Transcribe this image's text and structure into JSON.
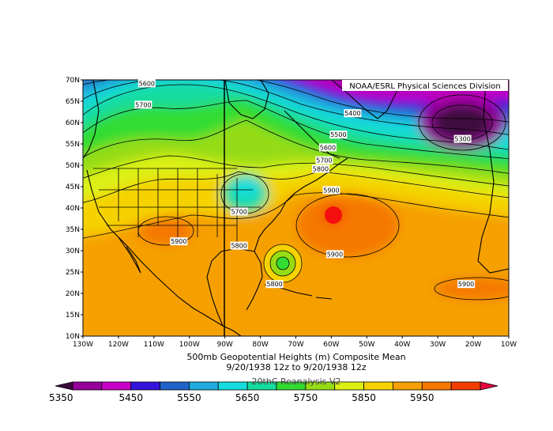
{
  "map": {
    "credit": "NOAA/ESRL Physical Sciences Division",
    "lat_labels": [
      "70N",
      "65N",
      "60N",
      "55N",
      "50N",
      "45N",
      "40N",
      "35N",
      "30N",
      "25N",
      "20N",
      "15N",
      "10N"
    ],
    "lon_labels": [
      "130W",
      "120W",
      "110W",
      "100W",
      "90W",
      "80W",
      "70W",
      "60W",
      "50W",
      "40W",
      "30W",
      "20W",
      "10W"
    ],
    "contour_labels": [
      {
        "text": "5600",
        "lon": -112,
        "lat": 69
      },
      {
        "text": "5700",
        "lon": -113,
        "lat": 64
      },
      {
        "text": "5400",
        "lon": -54,
        "lat": 62
      },
      {
        "text": "5500",
        "lon": -58,
        "lat": 57
      },
      {
        "text": "5300",
        "lon": -23,
        "lat": 56
      },
      {
        "text": "5600",
        "lon": -61,
        "lat": 54
      },
      {
        "text": "5700",
        "lon": -62,
        "lat": 51
      },
      {
        "text": "5800",
        "lon": -63,
        "lat": 49
      },
      {
        "text": "5900",
        "lon": -60,
        "lat": 44
      },
      {
        "text": "5700",
        "lon": -86,
        "lat": 39
      },
      {
        "text": "5900",
        "lon": -103,
        "lat": 32
      },
      {
        "text": "5800",
        "lon": -86,
        "lat": 31
      },
      {
        "text": "5900",
        "lon": -59,
        "lat": 29
      },
      {
        "text": "5800",
        "lon": -76,
        "lat": 22
      },
      {
        "text": "5900",
        "lon": -22,
        "lat": 22
      }
    ]
  },
  "caption": {
    "line1": "500mb Geopotential Heights (m)   Composite Mean",
    "line2": "9/20/1938 12z  to 9/20/1938 12z",
    "line3": "20thC Reanalysis V2"
  },
  "colorbar": {
    "colors": [
      "#3c0a3c",
      "#96009a",
      "#c800c8",
      "#3214dc",
      "#1e64c8",
      "#1eaadc",
      "#14dcdc",
      "#14dca0",
      "#32dc32",
      "#96dc14",
      "#dcf014",
      "#f5d200",
      "#f5a000",
      "#f57800",
      "#f53c00",
      "#e6003c"
    ],
    "labels": [
      "5350",
      "5450",
      "5550",
      "5650",
      "5750",
      "5850",
      "5950"
    ]
  }
}
